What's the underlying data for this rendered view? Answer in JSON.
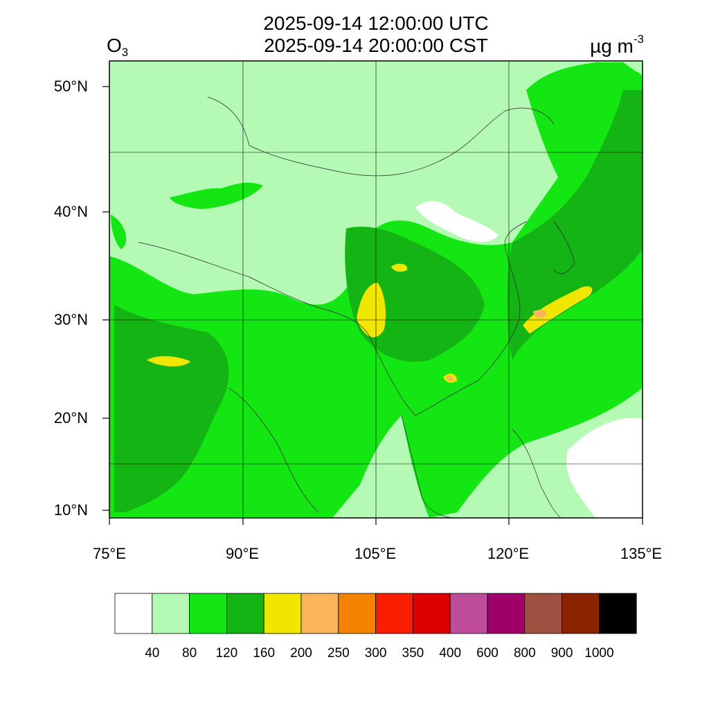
{
  "title": {
    "utc": "2025-09-14 12:00:00 UTC",
    "cst": "2025-09-14 20:00:00 CST"
  },
  "variable": {
    "name": "O",
    "subscript": "3"
  },
  "unit": {
    "base": "µg m",
    "exponent": "-3"
  },
  "lat_ticks": [
    "50°N",
    "40°N",
    "30°N",
    "20°N",
    "10°N"
  ],
  "lon_ticks": [
    "75°E",
    "90°E",
    "105°E",
    "120°E",
    "135°E"
  ],
  "colorbar": {
    "colors": [
      "#ffffff",
      "#b4fab4",
      "#14e614",
      "#14b414",
      "#f0e600",
      "#fab45a",
      "#f58200",
      "#fa1e00",
      "#dc0000",
      "#be4b9b",
      "#a00069",
      "#a05041",
      "#8c2300",
      "#000000"
    ],
    "labels": [
      "40",
      "80",
      "120",
      "160",
      "200",
      "250",
      "300",
      "350",
      "400",
      "600",
      "800",
      "900",
      "1000"
    ]
  }
}
